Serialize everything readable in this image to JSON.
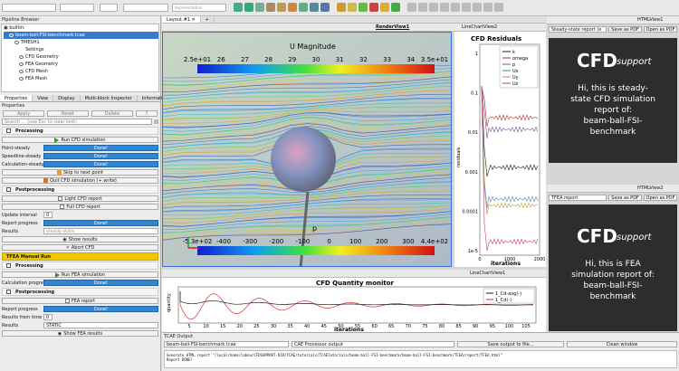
{
  "toolbar": {
    "representation_placeholder": "Representation"
  },
  "pipeline": {
    "title": "Pipeline Browser",
    "items": [
      "builtin:",
      "beam-ball-FSI-benchmark.tcae",
      "TMESH1",
      "Settings",
      "CFD Geometry",
      "FEA Geometry",
      "CFD Mesh",
      "FEA Mesh"
    ]
  },
  "props_tabs": [
    "Properties",
    "View",
    "Display",
    "Multi-block Inspector",
    "Information"
  ],
  "props_title": "Properties",
  "apply_buttons": [
    "Apply",
    "Reset",
    "Delete",
    "?"
  ],
  "search_placeholder": "Search ... (use Esc to clear text)",
  "processing": {
    "header": "Processing",
    "run_cfd": "Run CFD simulation",
    "rows": [
      {
        "label": "Point-steady",
        "value": "Done!"
      },
      {
        "label": "Speedline-steady",
        "value": "Done!"
      },
      {
        "label": "Calculation-steady",
        "value": "Done!"
      }
    ],
    "skip": "Skip to next point",
    "quit": "Quit CFD simulation (+ write)"
  },
  "postprocessing": {
    "header": "Postprocessing",
    "light_report": "Light CFD report",
    "full_report": "Full CFD report",
    "update_interval_label": "Update interval",
    "update_interval": "0",
    "report_progress_label": "Report progress",
    "report_progress": "Done!",
    "results_label": "Results",
    "results_value": "steady-state",
    "show_results": "Show results",
    "abort": "Abort CFD"
  },
  "tfea": {
    "header": "TFEA Manual Run",
    "processing": "Processing",
    "run_fea": "Run FEA simulation",
    "calc_progress_label": "Calculation progress",
    "calc_progress": "Done!",
    "postprocessing": "Postprocessing",
    "fea_report": "FEA report",
    "report_progress_label": "Report progress",
    "report_progress": "Done!",
    "results_from_time_label": "Results from time",
    "results_from_time": "0",
    "results_label": "Results",
    "results_value": "STATIC",
    "show_fea": "Show FEA results"
  },
  "layout_tab": "Layout #1",
  "render_view": {
    "title": "RenderView1",
    "u_title": "U Magnitude",
    "u_ticks": [
      "2.5e+01",
      "26",
      "27",
      "28",
      "29",
      "30",
      "31",
      "32",
      "33",
      "34",
      "3.5e+01"
    ],
    "p_title": "p",
    "p_ticks": [
      "-5.3e+02",
      "-400",
      "-300",
      "-200",
      "-100",
      "0",
      "100",
      "200",
      "300",
      "4.4e+02"
    ]
  },
  "residuals": {
    "view_title": "LineChartView2",
    "title": "CFD Residuals",
    "ylabel": "residuals",
    "xlabel": "iterations",
    "xticks": [
      "0",
      "1000",
      "2000"
    ],
    "yticks": [
      "1",
      "0.1",
      "0.01",
      "0.001",
      "0.0001",
      "1e-5"
    ],
    "legend": [
      {
        "name": "k",
        "color": "#1a1a1a"
      },
      {
        "name": "omega",
        "color": "#b03030"
      },
      {
        "name": "p",
        "color": "#7050a0"
      },
      {
        "name": "Ux",
        "color": "#4a80c0"
      },
      {
        "name": "Uy",
        "color": "#b0a030"
      },
      {
        "name": "Uz",
        "color": "#c04070"
      }
    ]
  },
  "quantity": {
    "view_title": "LineChartView1",
    "title": "CFD Quantity monitor",
    "ylabel": "quantity",
    "xlabel": "iterations",
    "xticks": [
      "5",
      "10",
      "15",
      "20",
      "25",
      "30",
      "35",
      "40",
      "45",
      "50",
      "55",
      "60",
      "65",
      "70",
      "75",
      "80",
      "85",
      "90",
      "95",
      "100",
      "105"
    ],
    "legend": [
      {
        "name": "1_Cd-avg(-)",
        "color": "#1a1a1a"
      },
      {
        "name": "1_Cd(-)",
        "color": "#d03030"
      }
    ]
  },
  "html1": {
    "view_title": "HTMLView1",
    "select": "Steady-state report (e",
    "save_pdf": "Save as PDF",
    "open_pdf": "Open as PDF",
    "logo_cfd": "CFD",
    "logo_support": "support",
    "text": [
      "Hi, this is steady-",
      "state CFD simulation",
      "report of:",
      "beam-ball-FSI-",
      "benchmark"
    ]
  },
  "html2": {
    "view_title": "HTMLView2",
    "select": "TFEA report",
    "save_pdf": "Save as PDF",
    "open_pdf": "Open as PDF",
    "logo_cfd": "CFD",
    "logo_support": "support",
    "text": [
      "Hi, this is FEA",
      "simulation report of:",
      "beam-ball-FSI-",
      "benchmark"
    ]
  },
  "output": {
    "title": "TCAE Output",
    "source": "beam-ball-FSI-benchmark.tcae",
    "channel": "CAE Processor output",
    "save": "Save output to file...",
    "clean": "Clean window",
    "lines": [
      "Generate HTML report \"/local/home/labou/CFDSUPPORT-DIR/TCAE/tutorials/TCAETutorials/beam-ball-FSI-benchmark/beam-ball-FSI-benchmark/TFEA/report/TFEA.html\"",
      "Report DONE!"
    ]
  }
}
